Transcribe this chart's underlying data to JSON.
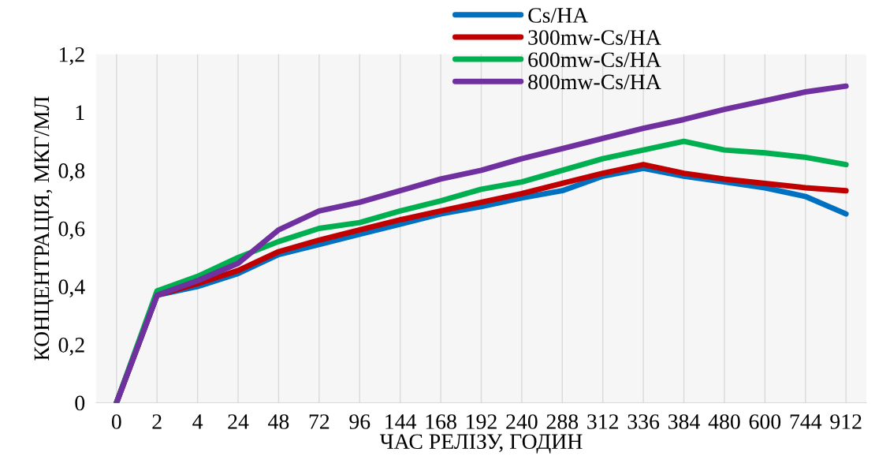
{
  "chart_data": {
    "type": "line",
    "xlabel": "ЧАС РЕЛІЗУ, ГОДИН",
    "ylabel": "КОНЦЕНТРАЦІЯ, МКГ/МЛ",
    "categories": [
      "0",
      "2",
      "4",
      "24",
      "48",
      "72",
      "96",
      "144",
      "168",
      "192",
      "240",
      "288",
      "312",
      "336",
      "384",
      "480",
      "600",
      "744",
      "912"
    ],
    "series": [
      {
        "name": "Cs/HA",
        "color": "#0070c0",
        "values": [
          0,
          0.37,
          0.4,
          0.445,
          0.51,
          0.545,
          0.58,
          0.615,
          0.65,
          0.675,
          0.705,
          0.73,
          0.78,
          0.807,
          0.78,
          0.76,
          0.74,
          0.71,
          0.65
        ]
      },
      {
        "name": "300mw-Cs/HA",
        "color": "#c00000",
        "values": [
          0,
          0.37,
          0.41,
          0.455,
          0.52,
          0.56,
          0.595,
          0.63,
          0.66,
          0.69,
          0.72,
          0.755,
          0.79,
          0.82,
          0.79,
          0.77,
          0.755,
          0.74,
          0.73
        ]
      },
      {
        "name": "600mw-Cs/HA",
        "color": "#00b050",
        "values": [
          0,
          0.385,
          0.435,
          0.5,
          0.555,
          0.6,
          0.62,
          0.66,
          0.695,
          0.735,
          0.76,
          0.8,
          0.84,
          0.87,
          0.9,
          0.87,
          0.86,
          0.845,
          0.82
        ]
      },
      {
        "name": "800mw-Cs/HA",
        "color": "#7030a0",
        "values": [
          0,
          0.37,
          0.42,
          0.48,
          0.595,
          0.66,
          0.69,
          0.73,
          0.77,
          0.8,
          0.84,
          0.875,
          0.91,
          0.945,
          0.975,
          1.01,
          1.04,
          1.07,
          1.09
        ]
      }
    ],
    "ylim": [
      0,
      1.2
    ],
    "yticks": [
      {
        "value": 0,
        "label": "0"
      },
      {
        "value": 0.2,
        "label": "0,2"
      },
      {
        "value": 0.4,
        "label": "0,4"
      },
      {
        "value": 0.6,
        "label": "0,6"
      },
      {
        "value": 0.8,
        "label": "0,8"
      },
      {
        "value": 1,
        "label": "1"
      },
      {
        "value": 1.2,
        "label": "1,2"
      }
    ],
    "grid": "x",
    "legend": "top",
    "marker": "none",
    "line_style": "solid"
  }
}
